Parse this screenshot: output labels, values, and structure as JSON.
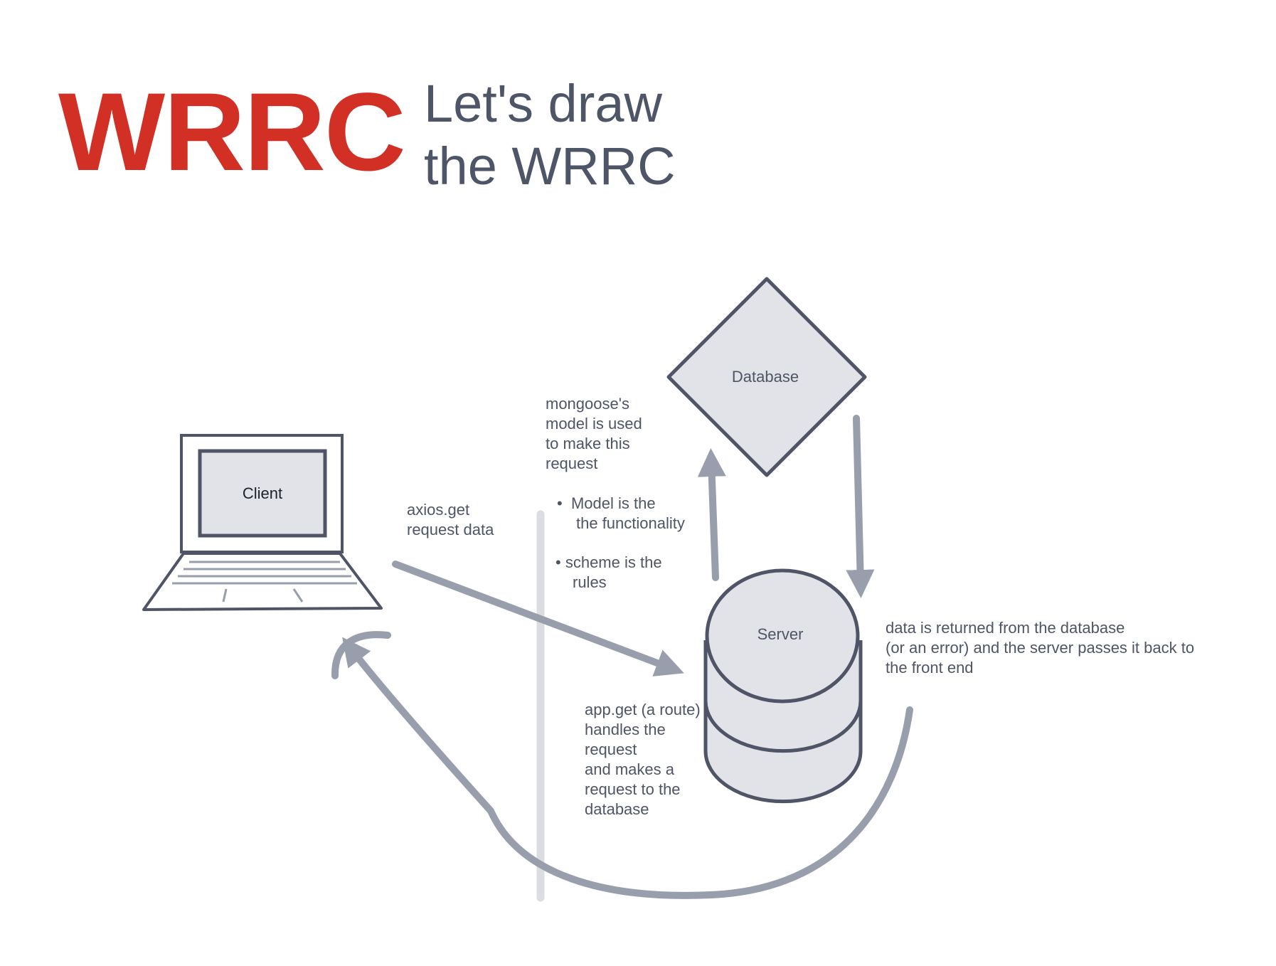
{
  "header": {
    "title": "WRRC",
    "subtitle_line1": "Let's draw",
    "subtitle_line2": "the WRRC"
  },
  "nodes": {
    "client": "Client",
    "database": "Database",
    "server": "Server"
  },
  "notes": {
    "axios": [
      "axios.get",
      "request data"
    ],
    "mongoose": [
      "mongoose's",
      "model is used",
      "to make this",
      "request"
    ],
    "bullet_model": [
      "Model  is the",
      "the functionality"
    ],
    "bullet_scheme": [
      "scheme is the",
      "rules"
    ],
    "appget": [
      "app.get (a route)",
      "handles the",
      "request",
      "and makes a",
      "request to the",
      "database"
    ],
    "returned": [
      "data is returned from the database",
      "(or an error) and the server passes it back to",
      "the front end"
    ]
  },
  "colors": {
    "title": "#d22f25",
    "text": "#4e5567",
    "stroke": "#4f5566",
    "fill": "#e1e3e8",
    "arrow": "#999eac",
    "divider": "#dcdde0"
  }
}
